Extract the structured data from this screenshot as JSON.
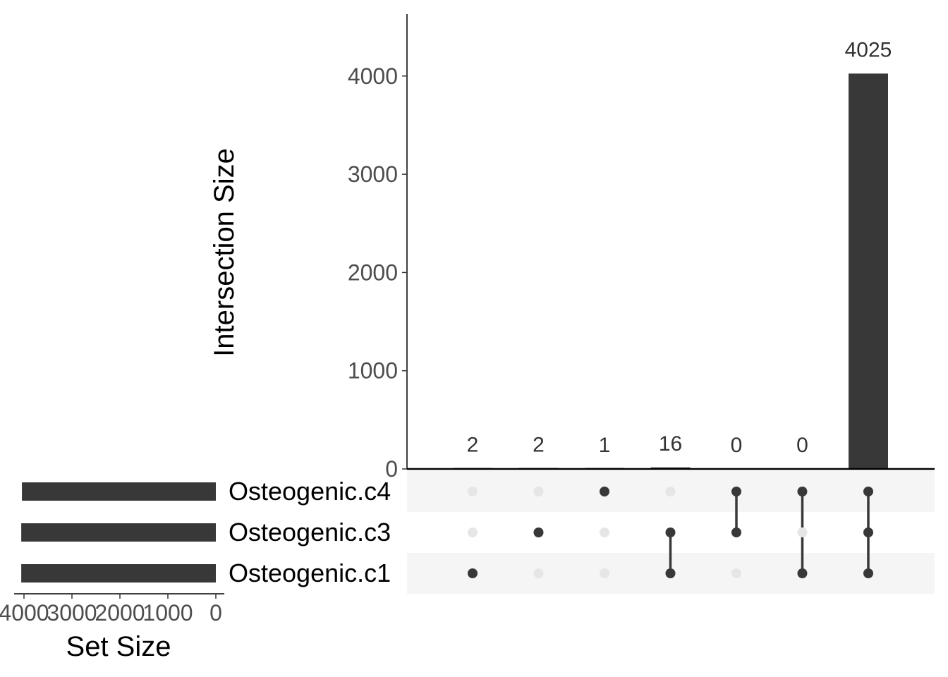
{
  "chart_data": {
    "type": "bar",
    "subtype": "upset",
    "ylabel": "Intersection Size",
    "set_size_label": "Set Size",
    "ylim": [
      0,
      4600
    ],
    "yticks": [
      0,
      1000,
      2000,
      3000,
      4000
    ],
    "set_size_ticks": [
      4000,
      3000,
      2000,
      1000,
      0
    ],
    "set_size_xlim": [
      0,
      4100
    ],
    "sets": [
      {
        "name": "Osteogenic.c4",
        "size": 4043
      },
      {
        "name": "Osteogenic.c3",
        "size": 4057
      },
      {
        "name": "Osteogenic.c1",
        "size": 4057
      }
    ],
    "intersections": [
      {
        "members": [
          "Osteogenic.c1"
        ],
        "size": 2
      },
      {
        "members": [
          "Osteogenic.c3"
        ],
        "size": 2
      },
      {
        "members": [
          "Osteogenic.c4"
        ],
        "size": 1
      },
      {
        "members": [
          "Osteogenic.c3",
          "Osteogenic.c1"
        ],
        "size": 16
      },
      {
        "members": [
          "Osteogenic.c4",
          "Osteogenic.c3"
        ],
        "size": 0
      },
      {
        "members": [
          "Osteogenic.c4",
          "Osteogenic.c1"
        ],
        "size": 0
      },
      {
        "members": [
          "Osteogenic.c4",
          "Osteogenic.c3",
          "Osteogenic.c1"
        ],
        "size": 4025
      }
    ],
    "colors": {
      "bar": "#383838",
      "dot_active": "#383838",
      "dot_inactive": "#e6e6e6",
      "stripe": "#f5f5f5"
    }
  }
}
